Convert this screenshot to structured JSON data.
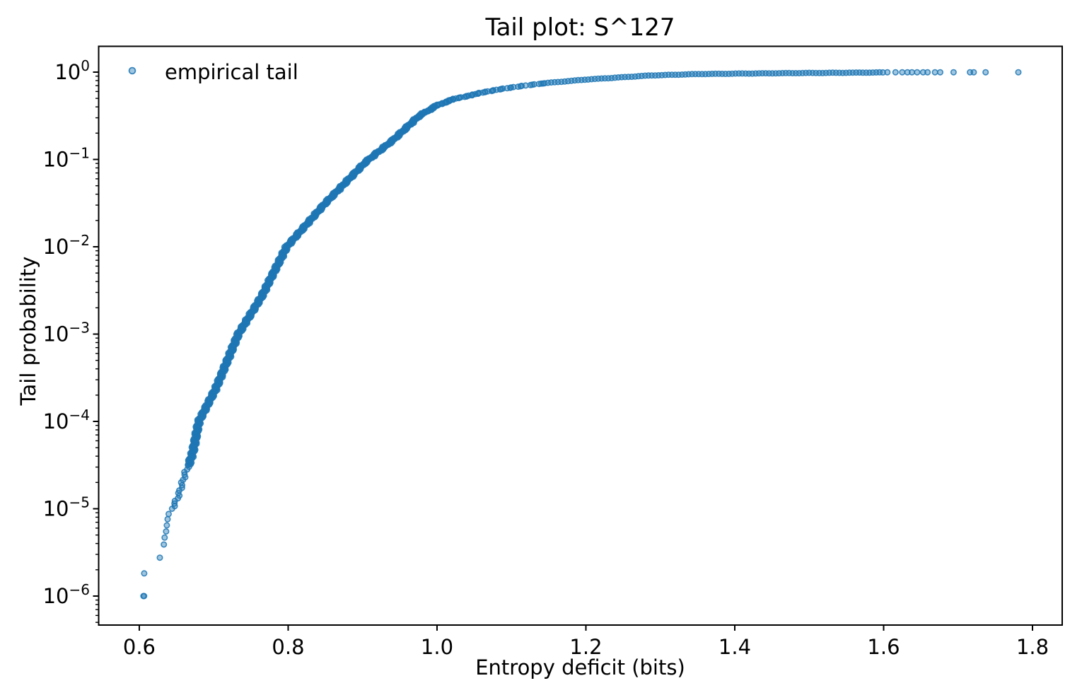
{
  "chart_data": {
    "type": "scatter",
    "title": "Tail plot: S^127",
    "xlabel": "Entropy deficit (bits)",
    "ylabel": "Tail probability",
    "legend": {
      "label": "empirical tail",
      "location": "upper-left",
      "frame": false
    },
    "x_axis": {
      "range": [
        0.5454,
        1.8399
      ],
      "ticks": [
        0.6,
        0.8,
        1.0,
        1.2,
        1.4,
        1.6,
        1.8
      ],
      "scale": "linear"
    },
    "y_axis": {
      "range_log10": [
        -6.332,
        0.2955
      ],
      "tick_exponents": [
        0,
        -1,
        -2,
        -3,
        -4,
        -5,
        -6
      ],
      "scale": "log",
      "minor_ticks": true
    },
    "style": {
      "marker_color": "#1f77b4",
      "marker_fill_alpha": 0.42,
      "marker_edge_alpha": 0.85,
      "marker_radius_px": 3.7,
      "axis_color": "#000000",
      "background": "#ffffff"
    },
    "series": [
      {
        "name": "empirical tail",
        "low_tail_points": [
          [
            0.6055,
            -6.0
          ],
          [
            0.6065,
            -6.0
          ],
          [
            0.6066,
            -5.74
          ],
          [
            0.6276,
            -5.56
          ],
          [
            0.633,
            -5.41
          ],
          [
            0.634,
            -5.33
          ],
          [
            0.636,
            -5.26
          ],
          [
            0.637,
            -5.19
          ],
          [
            0.638,
            -5.12
          ],
          [
            0.6395,
            -5.06
          ]
        ],
        "curve_control": [
          [
            0.644,
            -5.0
          ],
          [
            0.66,
            -4.67
          ],
          [
            0.672,
            -4.35
          ],
          [
            0.68,
            -4.0
          ],
          [
            0.703,
            -3.62
          ],
          [
            0.733,
            -3.0
          ],
          [
            0.764,
            -2.575
          ],
          [
            0.798,
            -2.0
          ],
          [
            0.85,
            -1.5
          ],
          [
            0.904,
            -1.03
          ],
          [
            0.942,
            -0.77
          ],
          [
            0.976,
            -0.5
          ],
          [
            1.002,
            -0.372
          ],
          [
            1.026,
            -0.3
          ],
          [
            1.08,
            -0.2
          ],
          [
            1.14,
            -0.13
          ],
          [
            1.2,
            -0.085
          ],
          [
            1.287,
            -0.038
          ],
          [
            1.35,
            -0.022
          ],
          [
            1.45,
            -0.013
          ],
          [
            1.55,
            -0.007
          ],
          [
            1.6,
            -0.004
          ]
        ],
        "sampling": {
          "segments": [
            {
              "mode": "logp",
              "from": -5.0,
              "to": -4.5,
              "step": 0.03
            },
            {
              "mode": "logp",
              "from": -4.5,
              "to": -0.13,
              "step": 0.0045
            },
            {
              "mode": "x",
              "from": 1.14,
              "to": 1.6,
              "step": 0.0045
            }
          ],
          "jitter_x": 0.0018
        },
        "top_sparse_points_x": [
          1.605,
          1.616,
          1.625,
          1.632,
          1.638,
          1.645,
          1.653,
          1.659,
          1.669,
          1.676,
          1.694,
          1.716,
          1.721,
          1.737,
          1.781
        ],
        "top_sparse_log10p": -0.002
      }
    ]
  }
}
